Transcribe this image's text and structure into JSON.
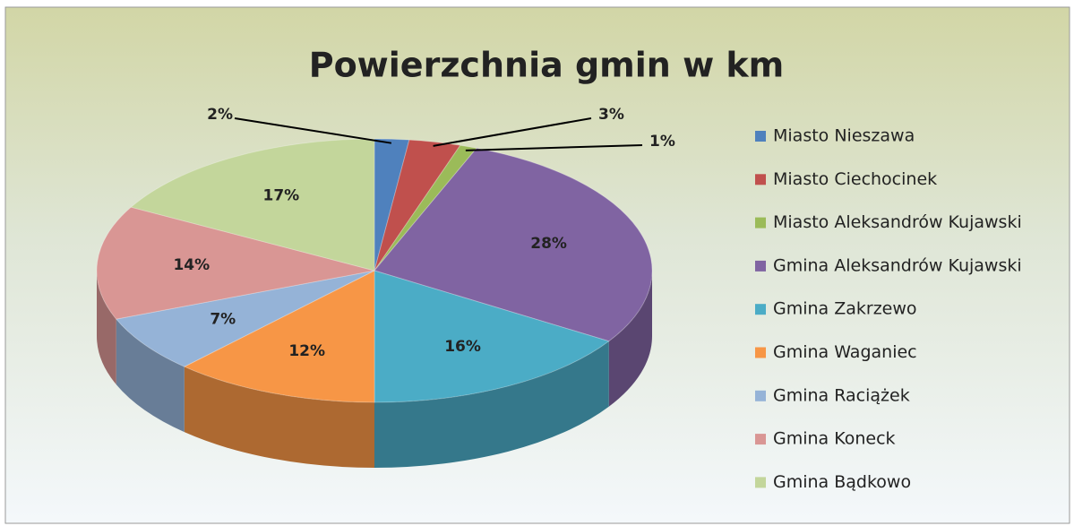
{
  "chart_data": {
    "type": "pie",
    "title": "Powierzchnia gmin w km",
    "categories": [
      "Miasto Nieszawa",
      "Miasto Ciechocinek",
      "Miasto Aleksandrów Kujawski",
      "Gmina Aleksandrów Kujawski",
      "Gmina Zakrzewo",
      "Gmina Waganiec",
      "Gmina Raciążek",
      "Gmina Koneck",
      "Gmina Bądkowo"
    ],
    "values": [
      2,
      3,
      1,
      28,
      16,
      12,
      7,
      14,
      17
    ],
    "value_labels": [
      "2%",
      "3%",
      "1%",
      "28%",
      "16%",
      "12%",
      "7%",
      "14%",
      "17%"
    ],
    "colors": [
      "#4f81bd",
      "#c0504d",
      "#9bbb59",
      "#8064a2",
      "#4bacc6",
      "#f79646",
      "#95b3d7",
      "#d99694",
      "#c3d69b"
    ],
    "legend": "right"
  }
}
